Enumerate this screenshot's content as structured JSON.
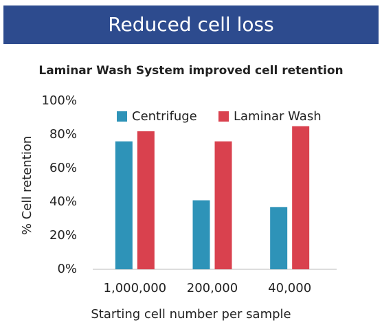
{
  "header": {
    "title": "Reduced cell loss"
  },
  "chart_data": {
    "type": "bar",
    "title": "Laminar Wash System improved cell retention",
    "x_label": "Starting cell number per sample",
    "y_label": "% Cell retention",
    "categories": [
      "1,000,000",
      "200,000",
      "40,000"
    ],
    "series": [
      {
        "name": "Centrifuge",
        "color": "#2e93b8",
        "values": [
          76,
          41,
          37
        ]
      },
      {
        "name": "Laminar Wash",
        "color": "#d9414e",
        "values": [
          82,
          76,
          85
        ]
      }
    ],
    "ylim": [
      0,
      100
    ],
    "yticks": [
      {
        "value": 0,
        "label": "0%"
      },
      {
        "value": 20,
        "label": "20%"
      },
      {
        "value": 40,
        "label": "40%"
      },
      {
        "value": 60,
        "label": "60%"
      },
      {
        "value": 80,
        "label": "80%"
      },
      {
        "value": 100,
        "label": "100%"
      }
    ],
    "grid": false,
    "legend": "top"
  }
}
